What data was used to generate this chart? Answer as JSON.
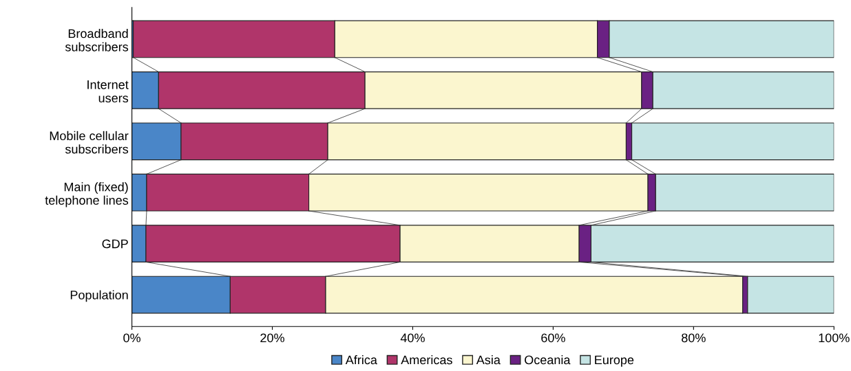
{
  "chart_data": {
    "type": "bar",
    "orientation": "horizontal",
    "stacked": true,
    "categories": [
      "Broadband\nsubscribers",
      "Internet\nusers",
      "Mobile cellular\nsubscribers",
      "Main (fixed)\ntelephone lines",
      "GDP",
      "Population"
    ],
    "series": [
      {
        "name": "Africa",
        "color": "#4a86c8",
        "values": [
          0.2,
          3.8,
          7.0,
          2.1,
          2.0,
          14.0
        ]
      },
      {
        "name": "Americas",
        "color": "#b0356a",
        "values": [
          28.7,
          29.4,
          20.9,
          23.1,
          36.2,
          13.6
        ]
      },
      {
        "name": "Asia",
        "color": "#fbf6cf",
        "values": [
          37.4,
          39.4,
          42.5,
          48.3,
          25.5,
          59.4
        ]
      },
      {
        "name": "Oceania",
        "color": "#6a2183",
        "values": [
          1.7,
          1.6,
          0.8,
          1.1,
          1.7,
          0.7
        ]
      },
      {
        "name": "Europe",
        "color": "#c5e4e4",
        "values": [
          32.0,
          25.8,
          28.8,
          25.4,
          34.6,
          12.3
        ]
      }
    ],
    "xlim": [
      0,
      100
    ],
    "xticks": [
      {
        "value": 0,
        "label": "0%"
      },
      {
        "value": 20,
        "label": "20%"
      },
      {
        "value": 40,
        "label": "40%"
      },
      {
        "value": 60,
        "label": "60%"
      },
      {
        "value": 80,
        "label": "80%"
      },
      {
        "value": 100,
        "label": "100%"
      }
    ],
    "grid": false,
    "legend": "bottom"
  }
}
